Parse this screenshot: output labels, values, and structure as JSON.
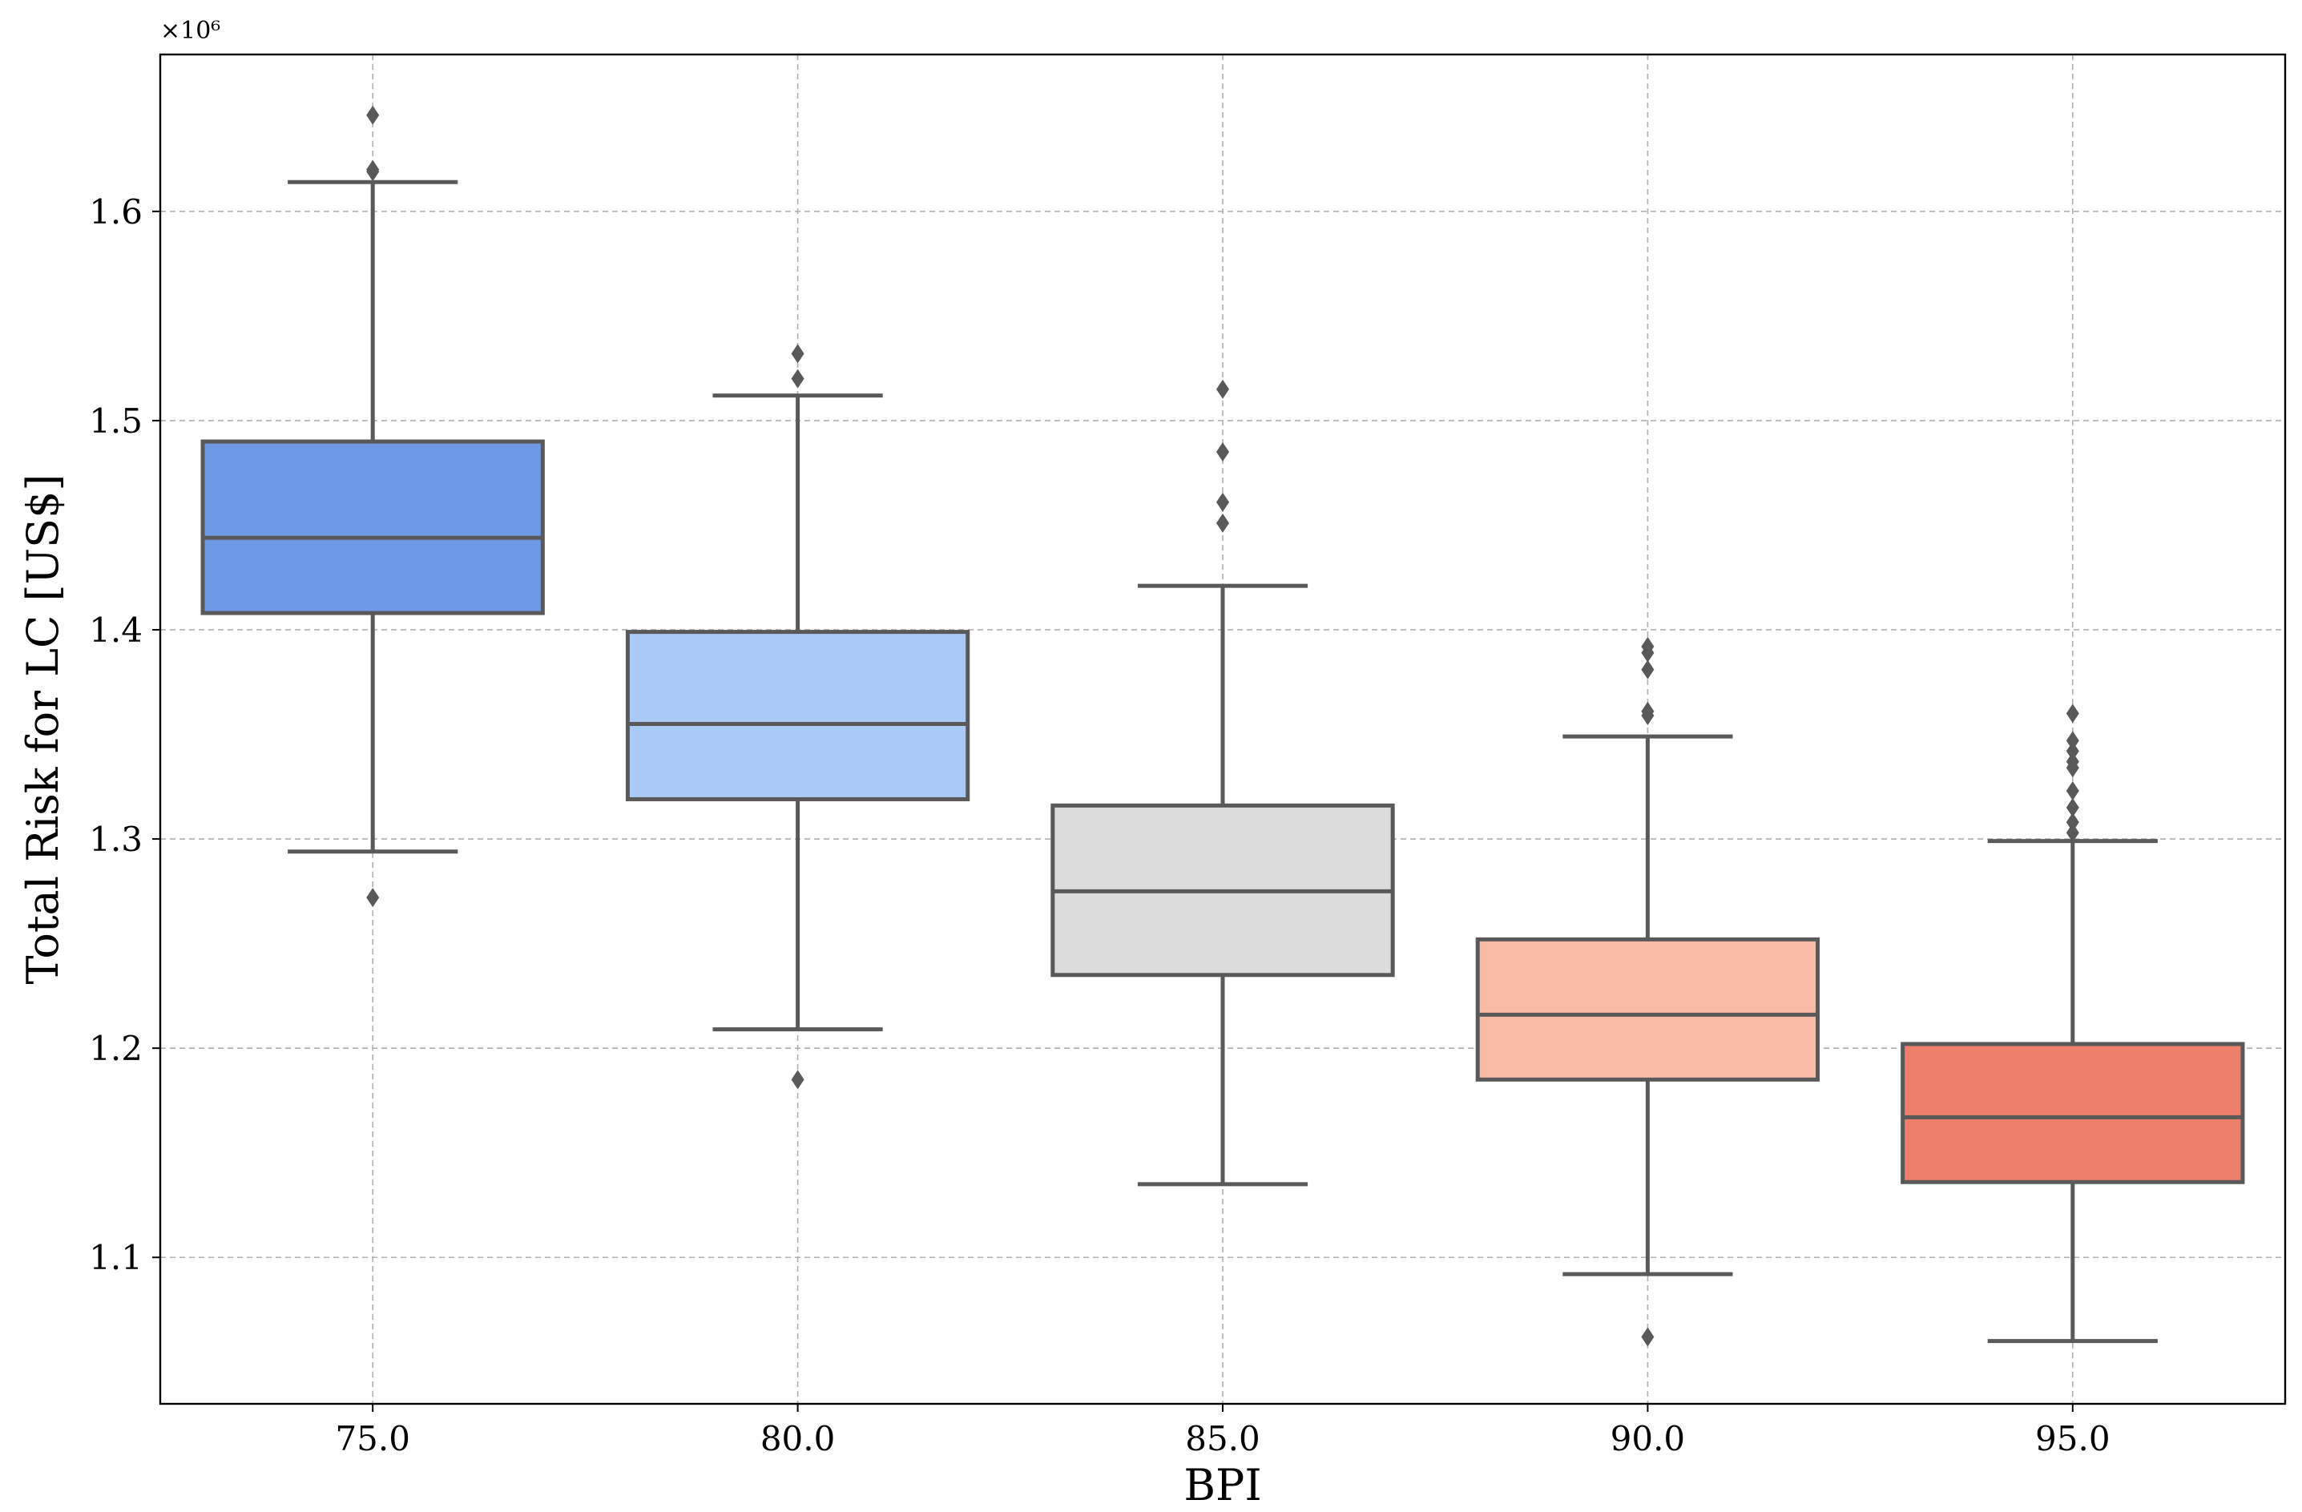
{
  "chart_data": {
    "type": "box",
    "title": "",
    "xlabel": "BPI",
    "ylabel": "Total Risk for LC [US$]",
    "y_exponent_label": "×10⁶",
    "y_scale": 1000000,
    "ylim": [
      1.03,
      1.675
    ],
    "yticks": [
      1.1,
      1.2,
      1.3,
      1.4,
      1.5,
      1.6
    ],
    "ytick_labels": [
      "1.1",
      "1.2",
      "1.3",
      "1.4",
      "1.5",
      "1.6"
    ],
    "grid": true,
    "categories": [
      "75.0",
      "80.0",
      "85.0",
      "90.0",
      "95.0"
    ],
    "boxes": [
      {
        "category": "75.0",
        "color": "#7099e5",
        "whisker_low": 1.294,
        "q1": 1.408,
        "median": 1.444,
        "q3": 1.49,
        "whisker_high": 1.614,
        "outliers": [
          1.272,
          1.619,
          1.62,
          1.646
        ]
      },
      {
        "category": "80.0",
        "color": "#abc9f5",
        "whisker_low": 1.209,
        "q1": 1.319,
        "median": 1.355,
        "q3": 1.399,
        "whisker_high": 1.512,
        "outliers": [
          1.185,
          1.52,
          1.532
        ]
      },
      {
        "category": "85.0",
        "color": "#dcdcdc",
        "whisker_low": 1.135,
        "q1": 1.235,
        "median": 1.275,
        "q3": 1.316,
        "whisker_high": 1.421,
        "outliers": [
          1.451,
          1.461,
          1.485,
          1.515
        ]
      },
      {
        "category": "90.0",
        "color": "#f9bba5",
        "whisker_low": 1.092,
        "q1": 1.185,
        "median": 1.216,
        "q3": 1.252,
        "whisker_high": 1.349,
        "outliers": [
          1.062,
          1.359,
          1.361,
          1.381,
          1.389,
          1.392
        ]
      },
      {
        "category": "95.0",
        "color": "#ee7f6b",
        "whisker_low": 1.06,
        "q1": 1.136,
        "median": 1.167,
        "q3": 1.202,
        "whisker_high": 1.299,
        "outliers": [
          1.303,
          1.308,
          1.315,
          1.323,
          1.334,
          1.337,
          1.342,
          1.347,
          1.36
        ]
      }
    ]
  }
}
